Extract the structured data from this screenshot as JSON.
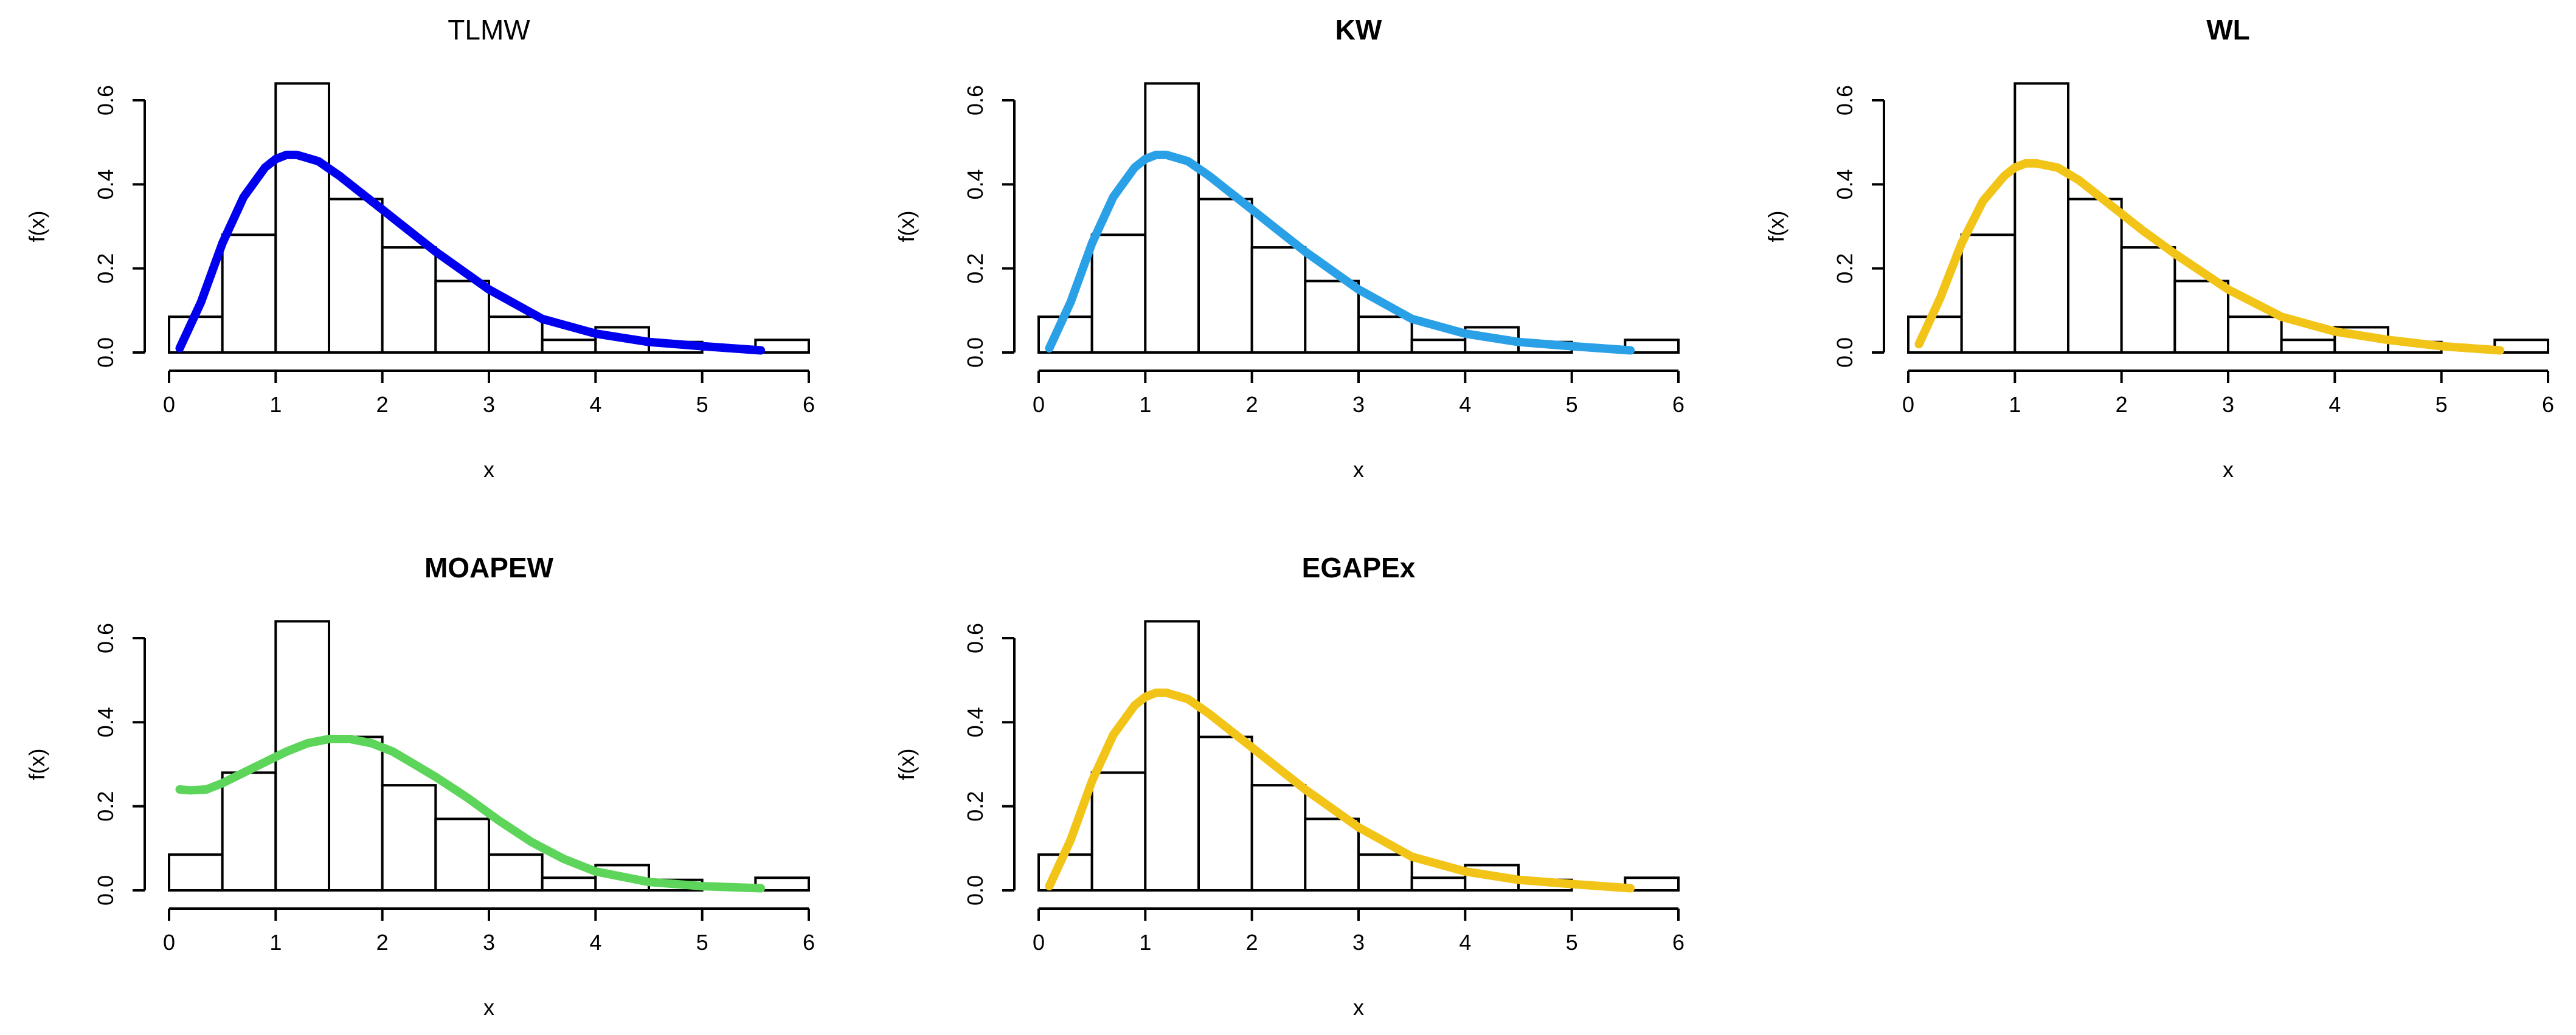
{
  "chart_data": [
    {
      "type": "histogram",
      "title": "TLMW",
      "title_bold": false,
      "xlabel": "x",
      "ylabel": "f(x)",
      "xlim": [
        0,
        6
      ],
      "ylim": [
        0,
        0.6
      ],
      "x_ticks": [
        "0",
        "1",
        "2",
        "3",
        "4",
        "5",
        "6"
      ],
      "y_ticks": [
        "0.0",
        "0.2",
        "0.4",
        "0.6"
      ],
      "bin_edges": [
        0,
        0.5,
        1,
        1.5,
        2,
        2.5,
        3,
        3.5,
        4,
        4.5,
        5,
        5.5,
        6
      ],
      "densities": [
        0.085,
        0.28,
        0.64,
        0.365,
        0.25,
        0.17,
        0.085,
        0.03,
        0.06,
        0.025,
        0.0,
        0.03
      ],
      "curve": {
        "color": "#0000ee",
        "x": [
          0.1,
          0.3,
          0.5,
          0.7,
          0.9,
          1.0,
          1.1,
          1.2,
          1.4,
          1.6,
          1.8,
          2.0,
          2.2,
          2.5,
          3.0,
          3.5,
          4.0,
          4.5,
          5.0,
          5.55
        ],
        "y": [
          0.01,
          0.12,
          0.26,
          0.37,
          0.44,
          0.46,
          0.47,
          0.47,
          0.455,
          0.42,
          0.38,
          0.34,
          0.3,
          0.24,
          0.15,
          0.08,
          0.045,
          0.025,
          0.015,
          0.005
        ]
      }
    },
    {
      "type": "histogram",
      "title": "KW",
      "title_bold": true,
      "xlabel": "x",
      "ylabel": "f(x)",
      "xlim": [
        0,
        6
      ],
      "ylim": [
        0,
        0.6
      ],
      "x_ticks": [
        "0",
        "1",
        "2",
        "3",
        "4",
        "5",
        "6"
      ],
      "y_ticks": [
        "0.0",
        "0.2",
        "0.4",
        "0.6"
      ],
      "bin_edges": [
        0,
        0.5,
        1,
        1.5,
        2,
        2.5,
        3,
        3.5,
        4,
        4.5,
        5,
        5.5,
        6
      ],
      "densities": [
        0.085,
        0.28,
        0.64,
        0.365,
        0.25,
        0.17,
        0.085,
        0.03,
        0.06,
        0.025,
        0.0,
        0.03
      ],
      "curve": {
        "color": "#2aa1e6",
        "x": [
          0.1,
          0.3,
          0.5,
          0.7,
          0.9,
          1.0,
          1.1,
          1.2,
          1.4,
          1.6,
          1.8,
          2.0,
          2.2,
          2.5,
          3.0,
          3.5,
          4.0,
          4.5,
          5.0,
          5.55
        ],
        "y": [
          0.01,
          0.12,
          0.26,
          0.37,
          0.44,
          0.46,
          0.47,
          0.47,
          0.455,
          0.42,
          0.38,
          0.34,
          0.3,
          0.24,
          0.15,
          0.08,
          0.045,
          0.025,
          0.015,
          0.005
        ]
      }
    },
    {
      "type": "histogram",
      "title": "WL",
      "title_bold": true,
      "xlabel": "x",
      "ylabel": "f(x)",
      "xlim": [
        0,
        6
      ],
      "ylim": [
        0,
        0.6
      ],
      "x_ticks": [
        "0",
        "1",
        "2",
        "3",
        "4",
        "5",
        "6"
      ],
      "y_ticks": [
        "0.0",
        "0.2",
        "0.4",
        "0.6"
      ],
      "bin_edges": [
        0,
        0.5,
        1,
        1.5,
        2,
        2.5,
        3,
        3.5,
        4,
        4.5,
        5,
        5.5,
        6
      ],
      "densities": [
        0.085,
        0.28,
        0.64,
        0.365,
        0.25,
        0.17,
        0.085,
        0.03,
        0.06,
        0.025,
        0.0,
        0.03
      ],
      "curve": {
        "color": "#f2c417",
        "x": [
          0.1,
          0.3,
          0.5,
          0.7,
          0.9,
          1.0,
          1.1,
          1.2,
          1.4,
          1.6,
          1.8,
          2.0,
          2.2,
          2.5,
          3.0,
          3.5,
          4.0,
          4.5,
          5.0,
          5.55
        ],
        "y": [
          0.02,
          0.13,
          0.26,
          0.36,
          0.42,
          0.44,
          0.45,
          0.45,
          0.44,
          0.41,
          0.37,
          0.33,
          0.29,
          0.235,
          0.15,
          0.085,
          0.05,
          0.03,
          0.015,
          0.005
        ]
      }
    },
    {
      "type": "histogram",
      "title": "MOAPEW",
      "title_bold": true,
      "xlabel": "x",
      "ylabel": "f(x)",
      "xlim": [
        0,
        6
      ],
      "ylim": [
        0,
        0.6
      ],
      "x_ticks": [
        "0",
        "1",
        "2",
        "3",
        "4",
        "5",
        "6"
      ],
      "y_ticks": [
        "0.0",
        "0.2",
        "0.4",
        "0.6"
      ],
      "bin_edges": [
        0,
        0.5,
        1,
        1.5,
        2,
        2.5,
        3,
        3.5,
        4,
        4.5,
        5,
        5.5,
        6
      ],
      "densities": [
        0.085,
        0.28,
        0.64,
        0.365,
        0.25,
        0.17,
        0.085,
        0.03,
        0.06,
        0.025,
        0.0,
        0.03
      ],
      "curve": {
        "color": "#5dd45a",
        "x": [
          0.1,
          0.2,
          0.35,
          0.5,
          0.7,
          0.9,
          1.1,
          1.3,
          1.5,
          1.7,
          1.9,
          2.1,
          2.3,
          2.5,
          2.8,
          3.1,
          3.4,
          3.7,
          4.0,
          4.5,
          5.0,
          5.55
        ],
        "y": [
          0.24,
          0.238,
          0.24,
          0.255,
          0.28,
          0.305,
          0.33,
          0.35,
          0.36,
          0.36,
          0.35,
          0.33,
          0.3,
          0.27,
          0.22,
          0.165,
          0.115,
          0.075,
          0.045,
          0.02,
          0.01,
          0.005
        ]
      }
    },
    {
      "type": "histogram",
      "title": "EGAPEx",
      "title_bold": true,
      "xlabel": "x",
      "ylabel": "f(x)",
      "xlim": [
        0,
        6
      ],
      "ylim": [
        0,
        0.6
      ],
      "x_ticks": [
        "0",
        "1",
        "2",
        "3",
        "4",
        "5",
        "6"
      ],
      "y_ticks": [
        "0.0",
        "0.2",
        "0.4",
        "0.6"
      ],
      "bin_edges": [
        0,
        0.5,
        1,
        1.5,
        2,
        2.5,
        3,
        3.5,
        4,
        4.5,
        5,
        5.5,
        6
      ],
      "densities": [
        0.085,
        0.28,
        0.64,
        0.365,
        0.25,
        0.17,
        0.085,
        0.03,
        0.06,
        0.025,
        0.0,
        0.03
      ],
      "curve": {
        "color": "#f2c417",
        "x": [
          0.1,
          0.3,
          0.5,
          0.7,
          0.9,
          1.0,
          1.1,
          1.2,
          1.4,
          1.6,
          1.8,
          2.0,
          2.2,
          2.5,
          3.0,
          3.5,
          4.0,
          4.5,
          5.0,
          5.55
        ],
        "y": [
          0.01,
          0.12,
          0.26,
          0.37,
          0.44,
          0.46,
          0.47,
          0.47,
          0.455,
          0.42,
          0.38,
          0.34,
          0.3,
          0.24,
          0.15,
          0.08,
          0.045,
          0.025,
          0.015,
          0.005
        ]
      }
    }
  ]
}
